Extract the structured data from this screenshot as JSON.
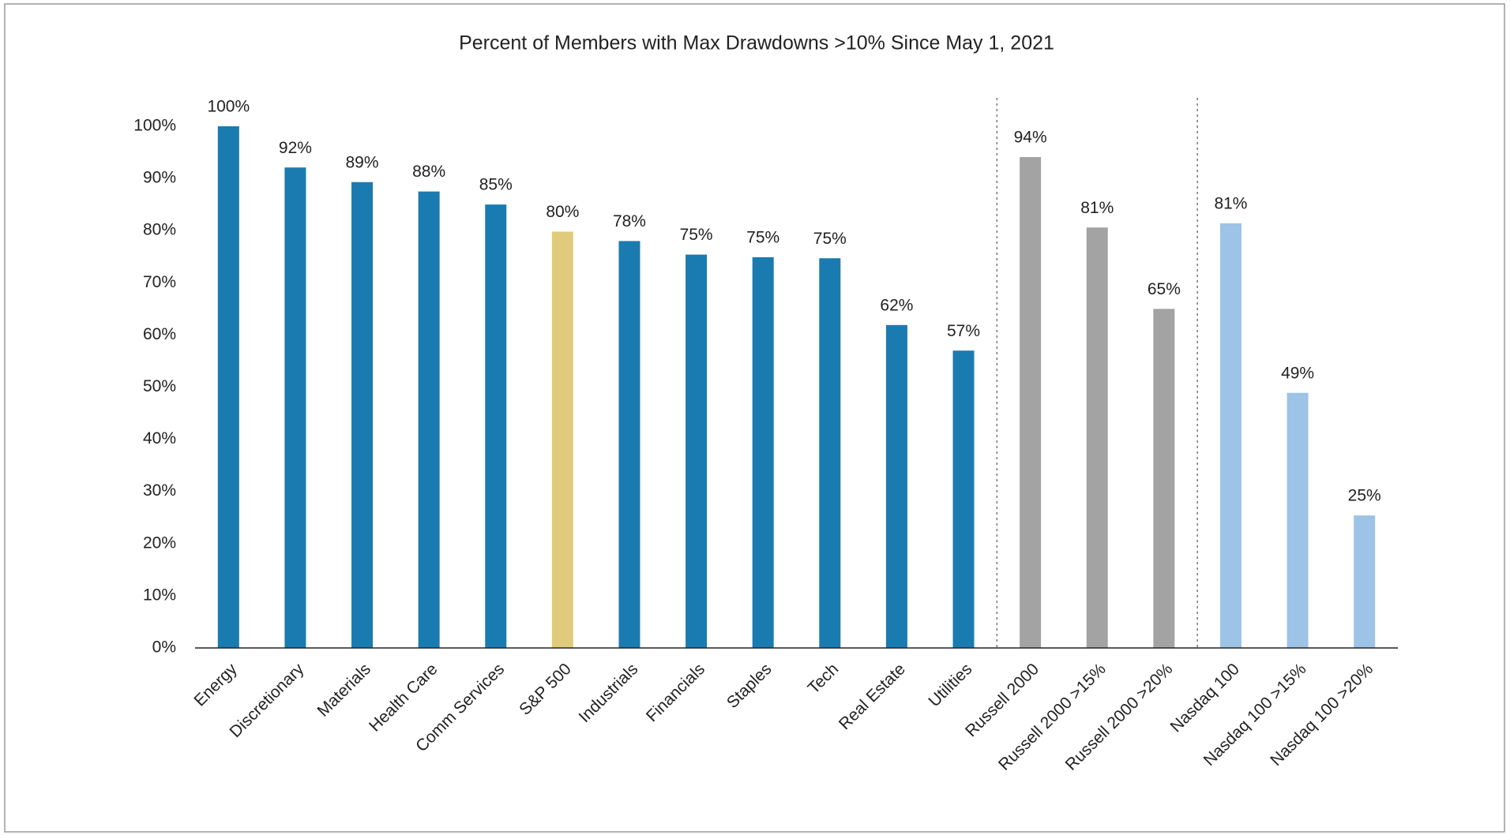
{
  "chart_data": {
    "type": "bar",
    "title": "Percent of Members with Max Drawdowns >10% Since May 1, 2021",
    "categories": [
      "Energy",
      "Discretionary",
      "Materials",
      "Health Care",
      "Comm Services",
      "S&P 500",
      "Industrials",
      "Financials",
      "Staples",
      "Tech",
      "Real Estate",
      "Utilities",
      "Russell 2000",
      "Russell 2000 >15%",
      "Russell 2000 >20%",
      "Nasdaq 100",
      "Nasdaq 100 >15%",
      "Nasdaq 100 >20%"
    ],
    "values": [
      100,
      92.1,
      89.3,
      87.5,
      85,
      79.8,
      78,
      75.4,
      74.9,
      74.7,
      61.9,
      57,
      94.1,
      80.6,
      65,
      81.4,
      48.9,
      25.4
    ],
    "value_labels": [
      "100%",
      "92%",
      "89%",
      "88%",
      "85%",
      "80%",
      "78%",
      "75%",
      "75%",
      "75%",
      "62%",
      "57%",
      "94%",
      "81%",
      "65%",
      "81%",
      "49%",
      "25%"
    ],
    "colors": [
      "#1a7bb0",
      "#1a7bb0",
      "#1a7bb0",
      "#1a7bb0",
      "#1a7bb0",
      "#e0cb7c",
      "#1a7bb0",
      "#1a7bb0",
      "#1a7bb0",
      "#1a7bb0",
      "#1a7bb0",
      "#1a7bb0",
      "#a3a3a3",
      "#a3a3a3",
      "#a3a3a3",
      "#9dc3e6",
      "#9dc3e6",
      "#9dc3e6"
    ],
    "ylim": [
      0,
      100
    ],
    "yticks": [
      {
        "value": 0,
        "label": "0%"
      },
      {
        "value": 10,
        "label": "10%"
      },
      {
        "value": 20,
        "label": "20%"
      },
      {
        "value": 30,
        "label": "30%"
      },
      {
        "value": 40,
        "label": "40%"
      },
      {
        "value": 50,
        "label": "50%"
      },
      {
        "value": 60,
        "label": "60%"
      },
      {
        "value": 70,
        "label": "70%"
      },
      {
        "value": 80,
        "label": "80%"
      },
      {
        "value": 90,
        "label": "90%"
      },
      {
        "value": 100,
        "label": "100%"
      }
    ],
    "grid": false
  }
}
